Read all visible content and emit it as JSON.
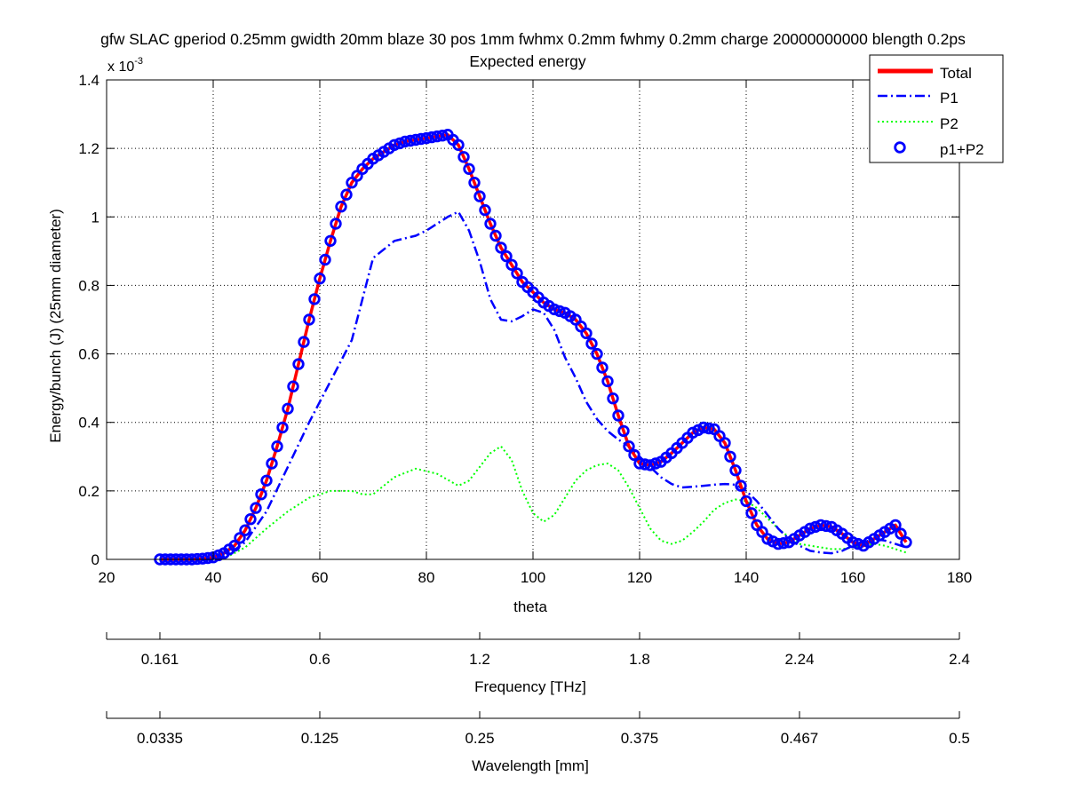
{
  "figure": {
    "title_line1": "gfw SLAC gperiod 0.25mm gwidth 20mm blaze 30 pos 1mm fwhmx 0.2mm fwhmy 0.2mm charge 20000000000 blength 0.2ps",
    "title_line2": "Expected energy",
    "exponent_label": "x 10",
    "exponent_power": "-3"
  },
  "chart_data": {
    "type": "line",
    "xlabel": "theta",
    "ylabel": "Energy/bunch (J)  (25mm diameter)",
    "xlim": [
      20,
      180
    ],
    "ylim": [
      0,
      1.4
    ],
    "y_scale_factor": "x 10^-3",
    "xticks": [
      20,
      40,
      60,
      80,
      100,
      120,
      140,
      160,
      180
    ],
    "yticks": [
      0,
      0.2,
      0.4,
      0.6,
      0.8,
      1,
      1.2,
      1.4
    ],
    "grid": true,
    "legend_position": "top-right",
    "series": [
      {
        "name": "Total",
        "style": "solid",
        "color": "#ff0000",
        "x": [
          30,
          32,
          34,
          36,
          38,
          40,
          42,
          44,
          46,
          48,
          50,
          52,
          54,
          56,
          58,
          60,
          62,
          64,
          66,
          68,
          70,
          72,
          74,
          76,
          78,
          80,
          82,
          84,
          86,
          88,
          90,
          92,
          94,
          96,
          98,
          100,
          102,
          104,
          106,
          108,
          110,
          112,
          114,
          116,
          118,
          120,
          122,
          124,
          126,
          128,
          130,
          132,
          134,
          136,
          138,
          140,
          142,
          144,
          146,
          148,
          150,
          152,
          154,
          156,
          158,
          160,
          162,
          164,
          166,
          168,
          170
        ],
        "y": [
          0,
          0,
          0,
          0,
          0.002,
          0.006,
          0.018,
          0.04,
          0.085,
          0.15,
          0.23,
          0.33,
          0.44,
          0.57,
          0.7,
          0.82,
          0.93,
          1.03,
          1.1,
          1.14,
          1.17,
          1.19,
          1.21,
          1.22,
          1.225,
          1.23,
          1.235,
          1.24,
          1.21,
          1.14,
          1.06,
          0.98,
          0.91,
          0.86,
          0.81,
          0.78,
          0.75,
          0.73,
          0.72,
          0.7,
          0.66,
          0.6,
          0.52,
          0.42,
          0.33,
          0.28,
          0.275,
          0.285,
          0.31,
          0.34,
          0.37,
          0.385,
          0.38,
          0.34,
          0.26,
          0.17,
          0.1,
          0.06,
          0.045,
          0.05,
          0.07,
          0.09,
          0.1,
          0.095,
          0.075,
          0.05,
          0.04,
          0.06,
          0.08,
          0.1,
          0.05
        ]
      },
      {
        "name": "P1",
        "style": "dashdot",
        "color": "#0000ff",
        "x": [
          30,
          34,
          38,
          42,
          46,
          50,
          54,
          58,
          62,
          66,
          70,
          74,
          78,
          80,
          82,
          84,
          86,
          88,
          90,
          92,
          94,
          96,
          98,
          100,
          102,
          104,
          106,
          108,
          110,
          112,
          114,
          116,
          118,
          120,
          122,
          124,
          126,
          128,
          130,
          132,
          134,
          136,
          138,
          140,
          142,
          144,
          146,
          148,
          150,
          152,
          154,
          156,
          158,
          160,
          162,
          164,
          166,
          168,
          170
        ],
        "y": [
          0,
          0,
          0,
          0.005,
          0.05,
          0.14,
          0.27,
          0.4,
          0.52,
          0.64,
          0.88,
          0.93,
          0.945,
          0.96,
          0.98,
          1.0,
          1.015,
          0.96,
          0.87,
          0.76,
          0.7,
          0.695,
          0.71,
          0.73,
          0.72,
          0.67,
          0.59,
          0.53,
          0.46,
          0.41,
          0.375,
          0.35,
          0.33,
          0.3,
          0.27,
          0.24,
          0.22,
          0.21,
          0.212,
          0.215,
          0.218,
          0.22,
          0.218,
          0.2,
          0.17,
          0.13,
          0.09,
          0.06,
          0.04,
          0.025,
          0.02,
          0.018,
          0.025,
          0.04,
          0.05,
          0.06,
          0.055,
          0.045,
          0.035
        ]
      },
      {
        "name": "P2",
        "style": "dotted",
        "color": "#00ff00",
        "x": [
          30,
          34,
          38,
          42,
          46,
          50,
          54,
          58,
          62,
          66,
          68,
          70,
          74,
          78,
          82,
          86,
          88,
          90,
          92,
          94,
          96,
          98,
          100,
          102,
          104,
          106,
          108,
          110,
          112,
          114,
          116,
          118,
          120,
          122,
          124,
          126,
          128,
          130,
          132,
          134,
          136,
          138,
          140,
          142,
          144,
          146,
          148,
          150,
          152,
          154,
          156,
          158,
          160,
          162,
          164,
          166,
          168,
          170
        ],
        "y": [
          0,
          0,
          0,
          0.002,
          0.035,
          0.09,
          0.14,
          0.18,
          0.2,
          0.2,
          0.19,
          0.19,
          0.24,
          0.265,
          0.25,
          0.215,
          0.23,
          0.27,
          0.31,
          0.33,
          0.29,
          0.2,
          0.135,
          0.11,
          0.13,
          0.18,
          0.23,
          0.26,
          0.275,
          0.28,
          0.26,
          0.21,
          0.15,
          0.09,
          0.055,
          0.045,
          0.055,
          0.08,
          0.11,
          0.145,
          0.165,
          0.175,
          0.17,
          0.15,
          0.12,
          0.09,
          0.065,
          0.045,
          0.04,
          0.035,
          0.03,
          0.03,
          0.035,
          0.04,
          0.045,
          0.04,
          0.03,
          0.02
        ]
      },
      {
        "name": "p1+P2",
        "style": "circles",
        "color": "#0000ff",
        "x": [
          30,
          31,
          32,
          33,
          34,
          35,
          36,
          37,
          38,
          39,
          40,
          41,
          42,
          43,
          44,
          45,
          46,
          47,
          48,
          49,
          50,
          51,
          52,
          53,
          54,
          55,
          56,
          57,
          58,
          59,
          60,
          61,
          62,
          63,
          64,
          65,
          66,
          67,
          68,
          69,
          70,
          71,
          72,
          73,
          74,
          75,
          76,
          77,
          78,
          79,
          80,
          81,
          82,
          83,
          84,
          85,
          86,
          87,
          88,
          89,
          90,
          91,
          92,
          93,
          94,
          95,
          96,
          97,
          98,
          99,
          100,
          101,
          102,
          103,
          104,
          105,
          106,
          107,
          108,
          109,
          110,
          111,
          112,
          113,
          114,
          115,
          116,
          117,
          118,
          119,
          120,
          121,
          122,
          123,
          124,
          125,
          126,
          127,
          128,
          129,
          130,
          131,
          132,
          133,
          134,
          135,
          136,
          137,
          138,
          139,
          140,
          141,
          142,
          143,
          144,
          145,
          146,
          147,
          148,
          149,
          150,
          151,
          152,
          153,
          154,
          155,
          156,
          157,
          158,
          159,
          160,
          161,
          162,
          163,
          164,
          165,
          166,
          167,
          168,
          169,
          170
        ],
        "y_source": "total"
      }
    ],
    "secondary_axes": [
      {
        "label": "Frequency [THz]",
        "tick_positions_theta": [
          20,
          30,
          60,
          90,
          120,
          150,
          180
        ],
        "tick_labels": [
          "",
          "0.161",
          "0.6",
          "1.2",
          "1.8",
          "2.24",
          "2.4"
        ]
      },
      {
        "label": "Wavelength [mm]",
        "tick_positions_theta": [
          20,
          30,
          60,
          90,
          120,
          150,
          180
        ],
        "tick_labels": [
          "",
          "0.0335",
          "0.125",
          "0.25",
          "0.375",
          "0.467",
          "0.5"
        ]
      }
    ]
  }
}
